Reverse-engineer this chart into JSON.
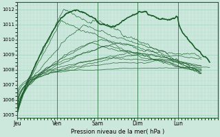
{
  "xlabel": "Pression niveau de la mer( hPa )",
  "bg_color": "#cce8dc",
  "plot_bg_color": "#cce8dc",
  "grid_color_major": "#99ccb8",
  "grid_color_minor": "#b8ddd0",
  "line_color": "#1a5c2a",
  "xlim": [
    0,
    120
  ],
  "ylim": [
    1004.8,
    1012.5
  ],
  "yticks": [
    1005,
    1006,
    1007,
    1008,
    1009,
    1010,
    1011,
    1012
  ],
  "day_labels": [
    "Jeu",
    "Ven",
    "Sam",
    "Dim",
    "Lun"
  ],
  "day_positions": [
    0,
    24,
    48,
    72,
    96
  ],
  "vline_positions": [
    0,
    24,
    48,
    72,
    96
  ]
}
